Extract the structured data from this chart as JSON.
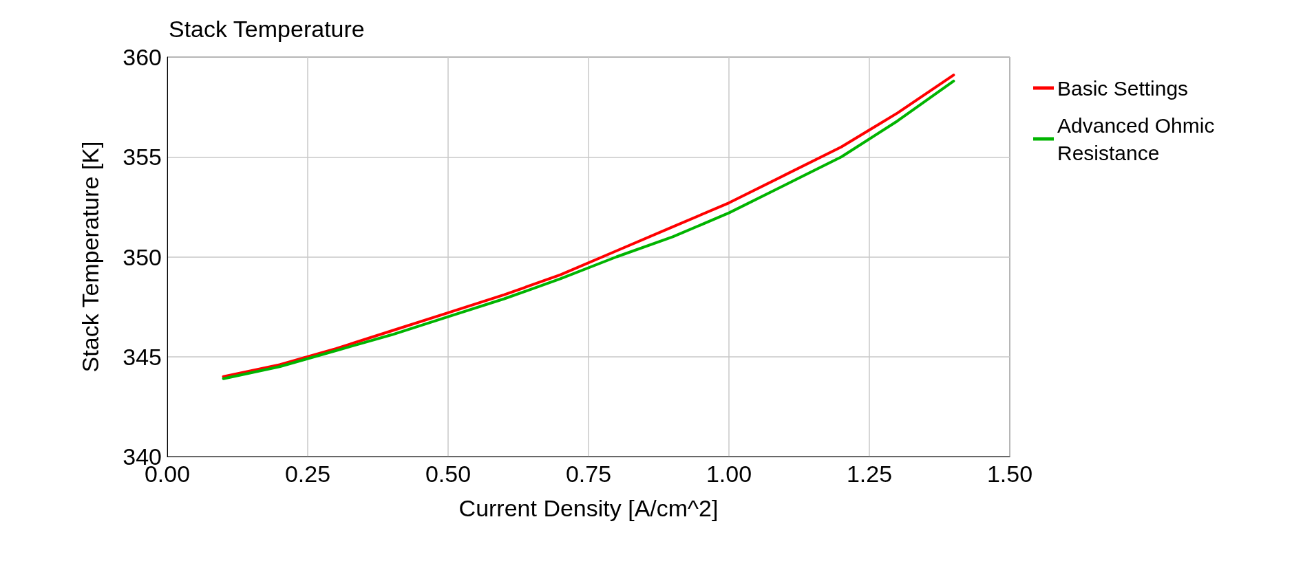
{
  "chart_data": {
    "type": "line",
    "title": "Stack Temperature",
    "xlabel": "Current Density [A/cm^2]",
    "ylabel": "Stack Temperature [K]",
    "x": [
      0.1,
      0.2,
      0.3,
      0.4,
      0.5,
      0.6,
      0.7,
      0.8,
      0.9,
      1.0,
      1.1,
      1.2,
      1.3,
      1.4
    ],
    "series": [
      {
        "name": "Basic Settings",
        "color": "#ff0000",
        "values": [
          344.0,
          344.6,
          345.4,
          346.3,
          347.2,
          348.1,
          349.1,
          350.3,
          351.5,
          352.7,
          354.1,
          355.5,
          357.2,
          359.1
        ]
      },
      {
        "name": "Advanced Ohmic Resistance",
        "color": "#00b400",
        "values": [
          343.9,
          344.5,
          345.3,
          346.1,
          347.0,
          347.9,
          348.9,
          350.0,
          351.0,
          352.2,
          353.6,
          355.0,
          356.8,
          358.8
        ]
      }
    ],
    "xlim": [
      0,
      1.5
    ],
    "ylim": [
      340,
      360
    ],
    "xticks": [
      {
        "value": 0,
        "label": "0.00"
      },
      {
        "value": 0.25,
        "label": "0.25"
      },
      {
        "value": 0.5,
        "label": "0.50"
      },
      {
        "value": 0.75,
        "label": "0.75"
      },
      {
        "value": 1,
        "label": "1.00"
      },
      {
        "value": 1.25,
        "label": "1.25"
      },
      {
        "value": 1.5,
        "label": "1.50"
      }
    ],
    "yticks": [
      340,
      345,
      350,
      355,
      360
    ],
    "grid": true,
    "legend": "top right",
    "marker": "none",
    "line_style": "solid"
  }
}
